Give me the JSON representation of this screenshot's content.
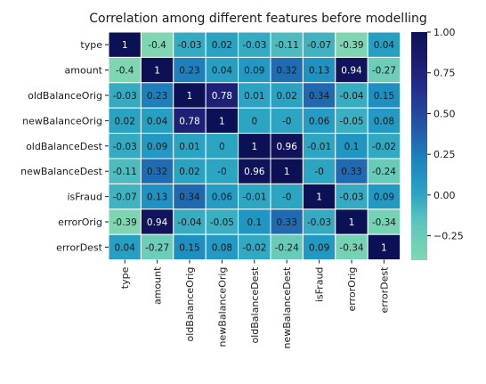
{
  "chart_data": {
    "type": "heatmap",
    "title": "Correlation among different features before modelling",
    "rows": [
      "type",
      "amount",
      "oldBalanceOrig",
      "newBalanceOrig",
      "oldBalanceDest",
      "newBalanceDest",
      "isFraud",
      "errorOrig",
      "errorDest"
    ],
    "columns": [
      "type",
      "amount",
      "oldBalanceOrig",
      "newBalanceOrig",
      "oldBalanceDest",
      "newBalanceDest",
      "isFraud",
      "errorOrig",
      "errorDest"
    ],
    "values": [
      [
        1,
        -0.4,
        -0.03,
        0.02,
        -0.03,
        -0.11,
        -0.07,
        -0.39,
        0.04
      ],
      [
        -0.4,
        1,
        0.23,
        0.04,
        0.09,
        0.32,
        0.13,
        0.94,
        -0.27
      ],
      [
        -0.03,
        0.23,
        1,
        0.78,
        0.01,
        0.02,
        0.34,
        -0.04,
        0.15
      ],
      [
        0.02,
        0.04,
        0.78,
        1,
        0,
        0,
        0.06,
        -0.05,
        0.08
      ],
      [
        -0.03,
        0.09,
        0.01,
        0,
        1,
        0.96,
        -0.01,
        0.1,
        -0.02
      ],
      [
        -0.11,
        0.32,
        0.02,
        0,
        0.96,
        1,
        0,
        0.33,
        -0.24
      ],
      [
        -0.07,
        0.13,
        0.34,
        0.06,
        -0.01,
        0,
        1,
        -0.03,
        0.09
      ],
      [
        -0.39,
        0.94,
        -0.04,
        -0.05,
        0.1,
        0.33,
        -0.03,
        1,
        -0.34
      ],
      [
        0.04,
        -0.27,
        0.15,
        0.08,
        -0.02,
        -0.24,
        0.09,
        -0.34,
        1
      ]
    ],
    "value_labels": [
      [
        "1",
        "-0.4",
        "-0.03",
        "0.02",
        "-0.03",
        "-0.11",
        "-0.07",
        "-0.39",
        "0.04"
      ],
      [
        "-0.4",
        "1",
        "0.23",
        "0.04",
        "0.09",
        "0.32",
        "0.13",
        "0.94",
        "-0.27"
      ],
      [
        "-0.03",
        "0.23",
        "1",
        "0.78",
        "0.01",
        "0.02",
        "0.34",
        "-0.04",
        "0.15"
      ],
      [
        "0.02",
        "0.04",
        "0.78",
        "1",
        "0",
        "-0",
        "0.06",
        "-0.05",
        "0.08"
      ],
      [
        "-0.03",
        "0.09",
        "0.01",
        "0",
        "1",
        "0.96",
        "-0.01",
        "0.1",
        "-0.02"
      ],
      [
        "-0.11",
        "0.32",
        "0.02",
        "-0",
        "0.96",
        "1",
        "-0",
        "0.33",
        "-0.24"
      ],
      [
        "-0.07",
        "0.13",
        "0.34",
        "0.06",
        "-0.01",
        "-0",
        "1",
        "-0.03",
        "0.09"
      ],
      [
        "-0.39",
        "0.94",
        "-0.04",
        "-0.05",
        "0.1",
        "0.33",
        "-0.03",
        "1",
        "-0.34"
      ],
      [
        "0.04",
        "-0.27",
        "0.15",
        "0.08",
        "-0.02",
        "-0.24",
        "0.09",
        "-0.34",
        "1"
      ]
    ],
    "colorbar": {
      "colormap": "YlGnBu",
      "range": [
        -0.4,
        1
      ],
      "ticks": [
        -0.25,
        0,
        0.25,
        0.5,
        0.75,
        1
      ],
      "tick_labels": [
        "−0.25",
        "0.00",
        "0.25",
        "0.50",
        "0.75",
        "1.00"
      ]
    },
    "colors": {
      "low": "#7fd6b2",
      "mid": "#1f9ec2",
      "high": "#0b0f55",
      "grid_lines": "#ffffff",
      "text_dark": "#1a1a1a",
      "text_light": "#ffffff"
    }
  }
}
